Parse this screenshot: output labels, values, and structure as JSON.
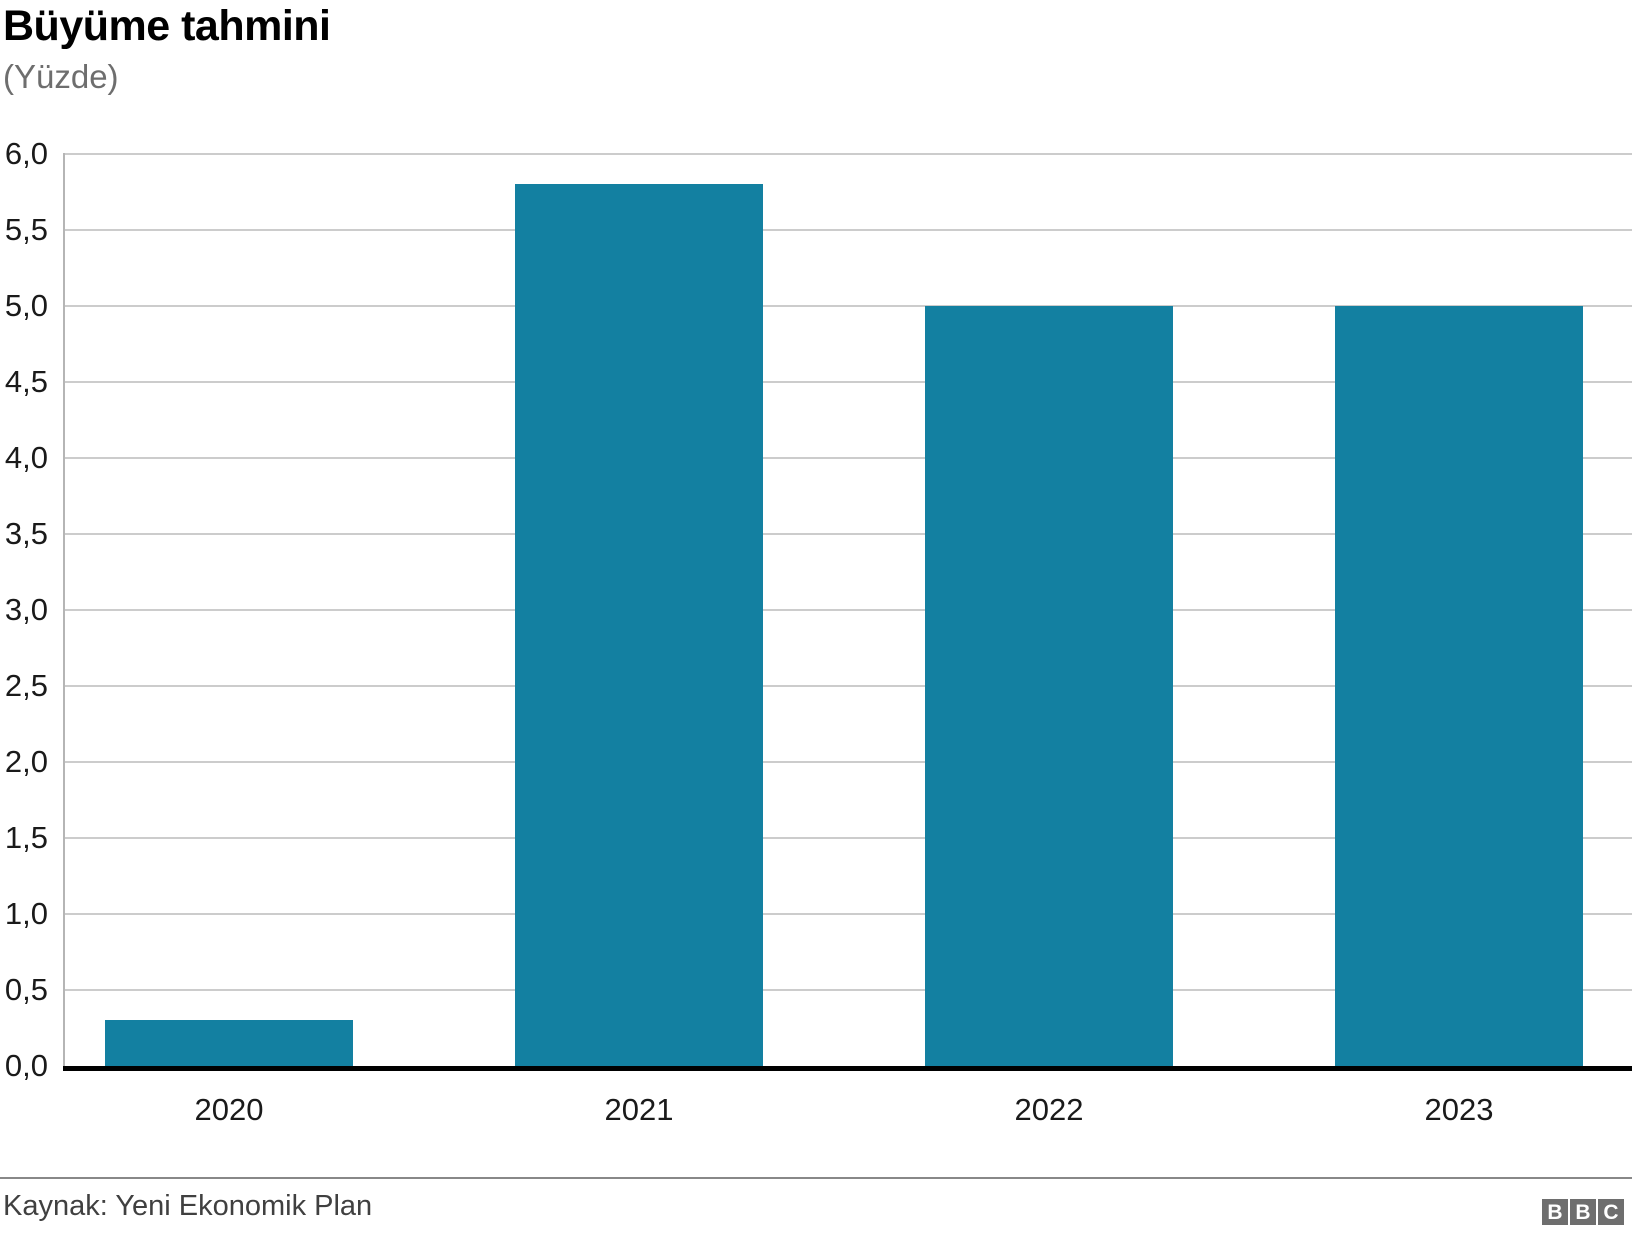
{
  "header": {
    "title": "Büyüme tahmini",
    "subtitle": "(Yüzde)"
  },
  "chart_data": {
    "type": "bar",
    "title": "Büyüme tahmini",
    "subtitle": "(Yüzde)",
    "categories": [
      "2020",
      "2021",
      "2022",
      "2023"
    ],
    "values": [
      0.3,
      5.8,
      5.0,
      5.0
    ],
    "xlabel": "",
    "ylabel": "",
    "ylim": [
      0,
      6
    ],
    "ytick_step": 0.5,
    "ytick_labels": [
      "0,0",
      "0,5",
      "1,0",
      "1,5",
      "2,0",
      "2,5",
      "3,0",
      "3,5",
      "4,0",
      "4,5",
      "5,0",
      "5,5",
      "6,0"
    ],
    "decimal_separator": "comma",
    "grid": true,
    "legend": "none",
    "bar_color": "#1380a1"
  },
  "colors": {
    "bar": "#1380a1",
    "gridline": "#cccccc",
    "axis_border": "#b5b5b5",
    "baseline": "#000000",
    "title_text": "#000000",
    "subtitle_text": "#6e6e6e",
    "tick_text": "#1a1a1a",
    "source_text": "#404040",
    "divider": "#888888",
    "logo_bg": "#6e6e6e",
    "logo_text": "#ffffff"
  },
  "footer": {
    "source": "Kaynak: Yeni Ekonomik Plan",
    "logo_letters": [
      "B",
      "B",
      "C"
    ]
  }
}
